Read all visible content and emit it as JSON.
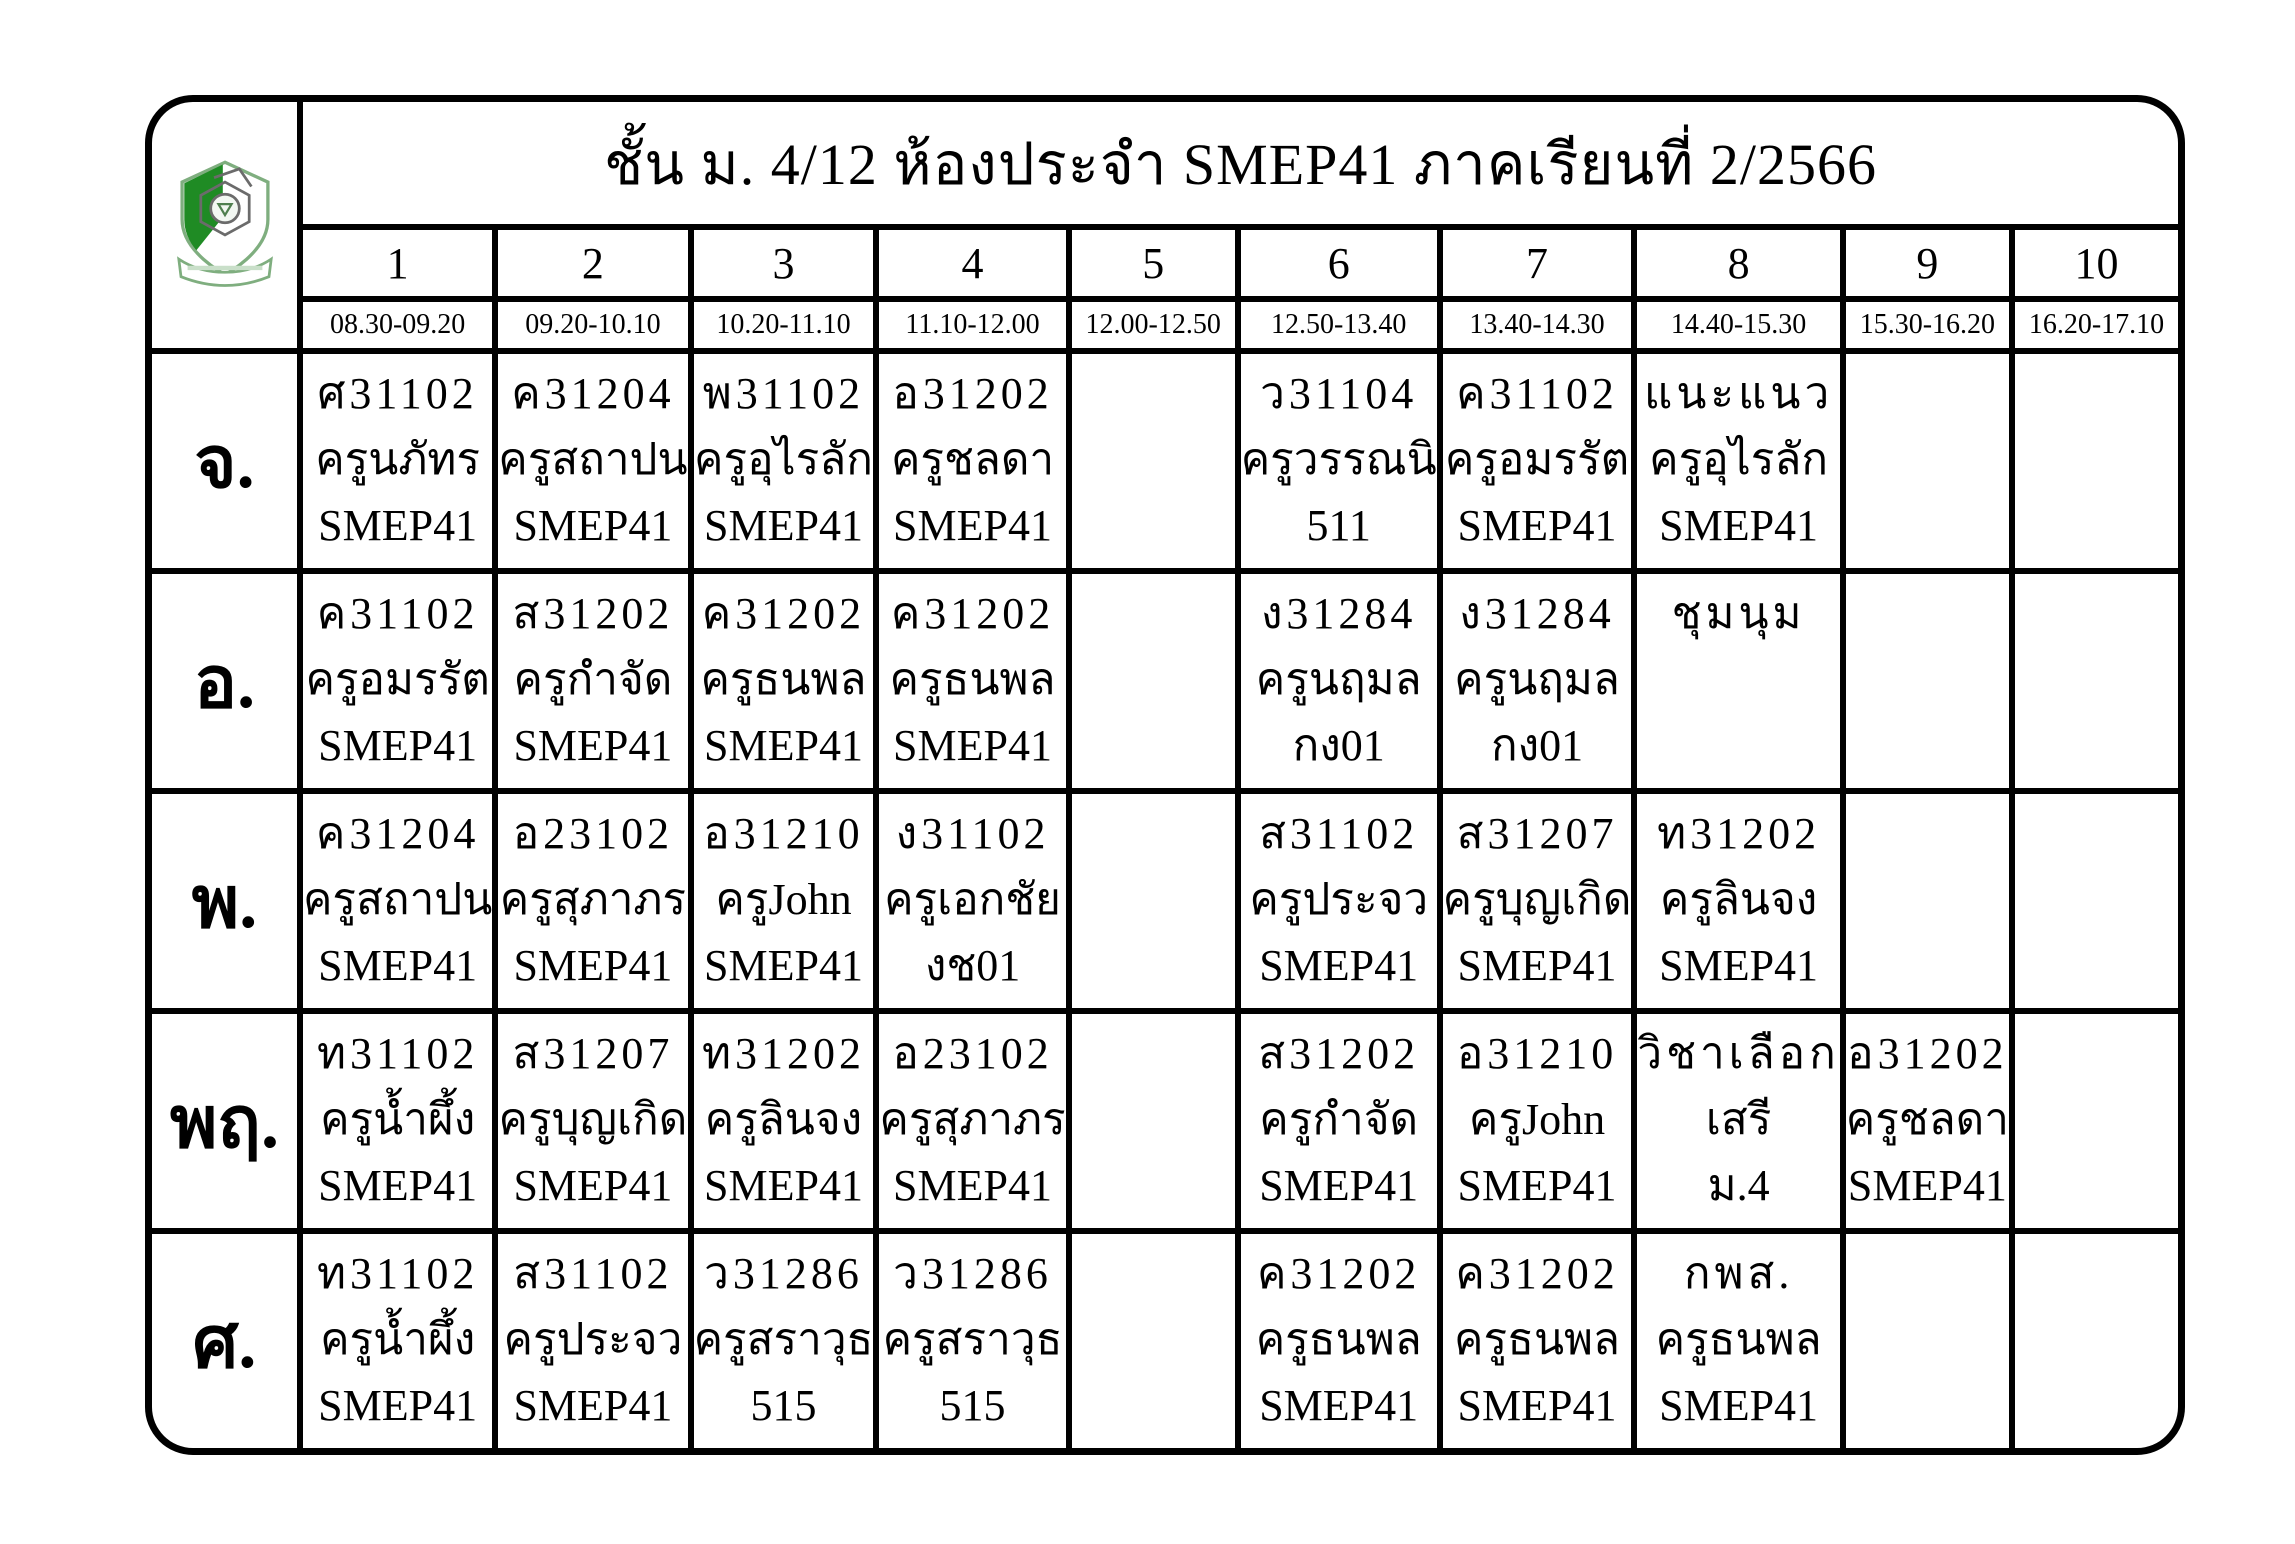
{
  "title": "ชั้น ม. 4/12 ห้องประจำ SMEP41 ภาคเรียนที่ 2/2566",
  "logo": {
    "name": "school-crest",
    "dark_green": "#1f8b24",
    "light_green": "#7fae7f",
    "pale_green": "#c9dfc9"
  },
  "periods": [
    "1",
    "2",
    "3",
    "4",
    "5",
    "6",
    "7",
    "8",
    "9",
    "10"
  ],
  "times": [
    "08.30-09.20",
    "09.20-10.10",
    "10.20-11.10",
    "11.10-12.00",
    "12.00-12.50",
    "12.50-13.40",
    "13.40-14.30",
    "14.40-15.30",
    "15.30-16.20",
    "16.20-17.10"
  ],
  "days": [
    {
      "label": "จ.",
      "cells": [
        [
          "ศ31102",
          "ครูนภัทร",
          "SMEP41"
        ],
        [
          "ค31204",
          "ครูสถาปน",
          "SMEP41"
        ],
        [
          "พ31102",
          "ครูอุไรลัก",
          "SMEP41"
        ],
        [
          "อ31202",
          "ครูชลดา",
          "SMEP41"
        ],
        [],
        [
          "ว31104",
          "ครูวรรณนิ",
          "511"
        ],
        [
          "ค31102",
          "ครูอมรรัต",
          "SMEP41"
        ],
        [
          "แนะแนว",
          "ครูอุไรลัก",
          "SMEP41"
        ],
        [],
        []
      ]
    },
    {
      "label": "อ.",
      "cells": [
        [
          "ค31102",
          "ครูอมรรัต",
          "SMEP41"
        ],
        [
          "ส31202",
          "ครูกำจัด",
          "SMEP41"
        ],
        [
          "ค31202",
          "ครูธนพล",
          "SMEP41"
        ],
        [
          "ค31202",
          "ครูธนพล",
          "SMEP41"
        ],
        [],
        [
          "ง31284",
          "ครูนฤมล",
          "กง01"
        ],
        [
          "ง31284",
          "ครูนฤมล",
          "กง01"
        ],
        [
          "ชุมนุม"
        ],
        [],
        []
      ]
    },
    {
      "label": "พ.",
      "cells": [
        [
          "ค31204",
          "ครูสถาปน",
          "SMEP41"
        ],
        [
          "อ23102",
          "ครูสุภาภร",
          "SMEP41"
        ],
        [
          "อ31210",
          "ครูJohn",
          "SMEP41"
        ],
        [
          "ง31102",
          "ครูเอกชัย",
          "งช01"
        ],
        [],
        [
          "ส31102",
          "ครูประจว",
          "SMEP41"
        ],
        [
          "ส31207",
          "ครูบุญเกิด",
          "SMEP41"
        ],
        [
          "ท31202",
          "ครูลินจง",
          "SMEP41"
        ],
        [],
        []
      ]
    },
    {
      "label": "พฤ.",
      "cells": [
        [
          "ท31102",
          "ครูน้ำผึ้ง",
          "SMEP41"
        ],
        [
          "ส31207",
          "ครูบุญเกิด",
          "SMEP41"
        ],
        [
          "ท31202",
          "ครูลินจง",
          "SMEP41"
        ],
        [
          "อ23102",
          "ครูสุภาภร",
          "SMEP41"
        ],
        [],
        [
          "ส31202",
          "ครูกำจัด",
          "SMEP41"
        ],
        [
          "อ31210",
          "ครูJohn",
          "SMEP41"
        ],
        [
          "วิชาเลือก",
          "เสรี",
          "ม.4"
        ],
        [
          "อ31202",
          "ครูชลดา",
          "SMEP41"
        ],
        []
      ]
    },
    {
      "label": "ศ.",
      "cells": [
        [
          "ท31102",
          "ครูน้ำผึ้ง",
          "SMEP41"
        ],
        [
          "ส31102",
          "ครูประจว",
          "SMEP41"
        ],
        [
          "ว31286",
          "ครูสราวุธ",
          "515"
        ],
        [
          "ว31286",
          "ครูสราวุธ",
          "515"
        ],
        [],
        [
          "ค31202",
          "ครูธนพล",
          "SMEP41"
        ],
        [
          "ค31202",
          "ครูธนพล",
          "SMEP41"
        ],
        [
          "กพส.",
          "ครูธนพล",
          "SMEP41"
        ],
        [],
        []
      ]
    }
  ]
}
